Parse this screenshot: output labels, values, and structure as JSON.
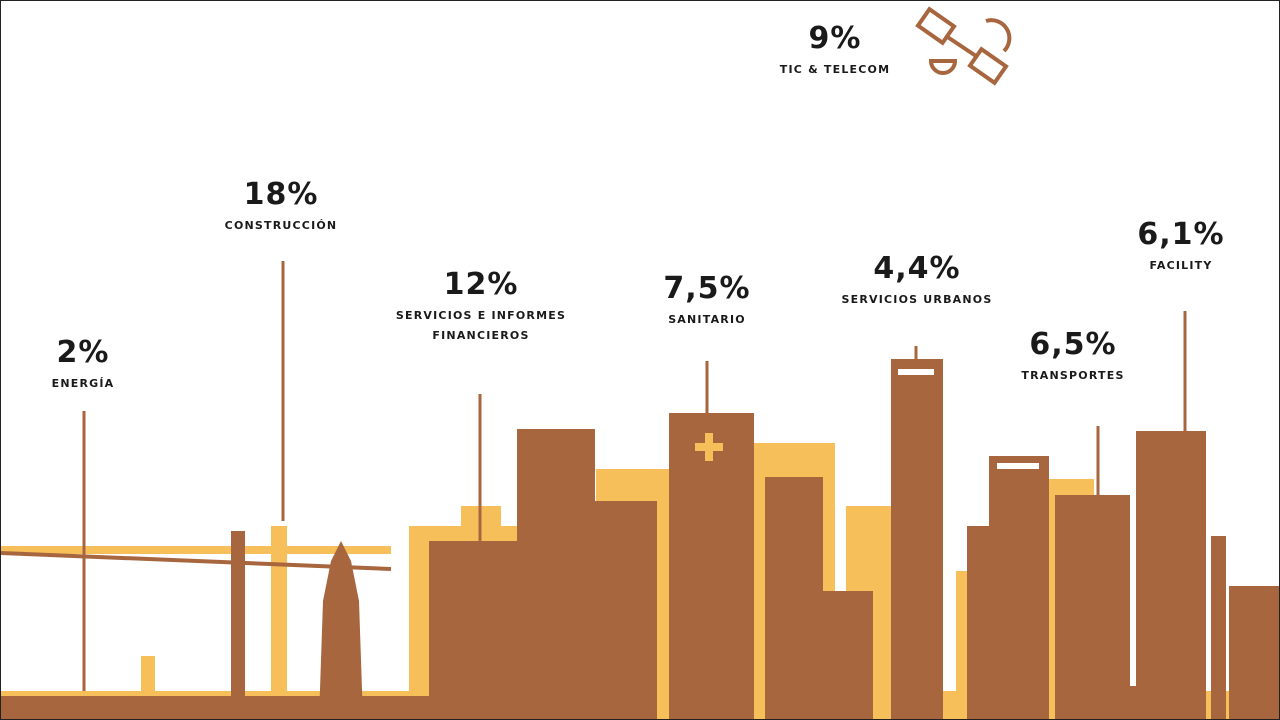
{
  "sectors": [
    {
      "percent": "2%",
      "name": "ENERGÍA"
    },
    {
      "percent": "18%",
      "name": "CONSTRUCCIÓN"
    },
    {
      "percent": "12%",
      "name": "SERVICIOS E INFORMES FINANCIEROS"
    },
    {
      "percent": "7,5%",
      "name": "SANITARIO"
    },
    {
      "percent": "4,4%",
      "name": "SERVICIOS URBANOS"
    },
    {
      "percent": "6,5%",
      "name": "TRANSPORTES"
    },
    {
      "percent": "6,1%",
      "name": "FACILITY"
    },
    {
      "percent": "9%",
      "name": "TIC & TELECOM"
    }
  ]
}
